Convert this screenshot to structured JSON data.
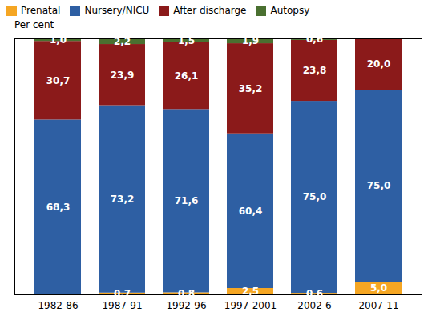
{
  "chart_data": {
    "type": "bar",
    "stacked": true,
    "data_labels": true,
    "tick_labels": "x",
    "legend": "upper left",
    "ylabel": "Per cent",
    "categories": [
      "1982-86",
      "1987-91",
      "1992-96",
      "1997-2001",
      "2002-6",
      "2007-11"
    ],
    "ylim": [
      0,
      100
    ],
    "series": [
      {
        "name": "Prenatal",
        "color": "#F5A623",
        "values": [
          0.0,
          0.7,
          0.8,
          2.5,
          0.6,
          5.0
        ],
        "value_labels": [
          null,
          "0,7",
          "0,8",
          "2,5",
          "0,6",
          "5,0"
        ]
      },
      {
        "name": "Nursery/NICU",
        "color": "#2E5FA3",
        "values": [
          68.3,
          73.2,
          71.6,
          60.4,
          75.0,
          75.0
        ],
        "value_labels": [
          "68,3",
          "73,2",
          "71,6",
          "60,4",
          "75,0",
          "75,0"
        ]
      },
      {
        "name": "After discharge",
        "color": "#8B1A1A",
        "values": [
          30.7,
          23.9,
          26.1,
          35.2,
          23.8,
          20.0
        ],
        "value_labels": [
          "30,7",
          "23,9",
          "26,1",
          "35,2",
          "23,8",
          "20,0"
        ]
      },
      {
        "name": "Autopsy",
        "color": "#4A7030",
        "values": [
          1.0,
          2.2,
          1.5,
          1.9,
          0.6,
          0.0
        ],
        "value_labels": [
          "1,0",
          "2,2",
          "1,5",
          "1,9",
          "0,6",
          null
        ]
      }
    ]
  }
}
